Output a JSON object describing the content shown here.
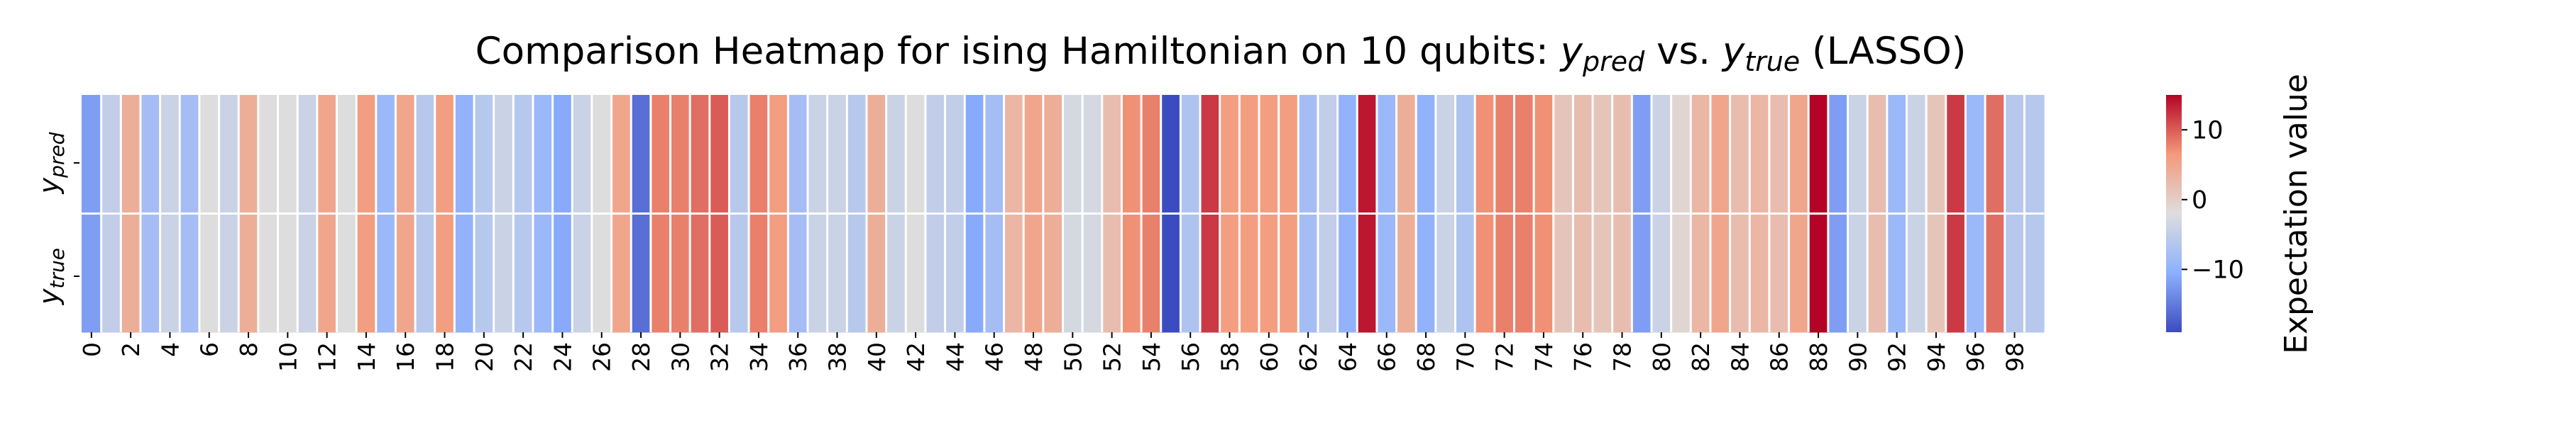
{
  "chart_data": {
    "type": "heatmap",
    "title": {
      "prefix": "Comparison Heatmap for ising Hamiltonian on 10 qubits: ",
      "pred_symbol": "y",
      "pred_sub": "pred",
      "middle": " vs. ",
      "true_symbol": "y",
      "true_sub": "true",
      "suffix": " (LASSO)"
    },
    "rows": [
      {
        "symbol": "y",
        "sub": "pred"
      },
      {
        "symbol": "y",
        "sub": "true"
      }
    ],
    "x_tick_labels": [
      "0",
      "2",
      "4",
      "6",
      "8",
      "10",
      "12",
      "14",
      "16",
      "18",
      "20",
      "22",
      "24",
      "26",
      "28",
      "30",
      "32",
      "34",
      "36",
      "38",
      "40",
      "42",
      "44",
      "46",
      "48",
      "50",
      "52",
      "54",
      "56",
      "58",
      "60",
      "62",
      "64",
      "66",
      "68",
      "70",
      "72",
      "74",
      "76",
      "78",
      "80",
      "82",
      "84",
      "86",
      "88",
      "90",
      "92",
      "94",
      "96",
      "98"
    ],
    "values": [
      -12,
      -5,
      4,
      -8,
      -4,
      -8,
      -2,
      -4,
      4,
      -2,
      -2,
      -4,
      5,
      -2,
      6,
      -9,
      5,
      -6,
      6,
      -10,
      -6,
      -4,
      -6,
      -9,
      -11,
      -4,
      -2,
      5,
      -16,
      8,
      8,
      9,
      10,
      -6,
      8,
      6,
      -8,
      -4,
      -4,
      -6,
      4,
      -4,
      -2,
      -5,
      -5,
      -11,
      -8,
      3,
      5,
      4,
      -3,
      -3,
      2,
      7,
      8,
      -19,
      -7,
      12,
      6,
      6,
      6,
      6,
      -8,
      -5,
      -10,
      14,
      -9,
      4,
      -10,
      -4,
      -7,
      7,
      8,
      8,
      7,
      1,
      2,
      1,
      2,
      -12,
      -4,
      -1,
      3,
      5,
      2,
      3,
      2,
      5,
      15,
      -12,
      -4,
      2,
      -9,
      -4,
      1,
      12,
      -9,
      9,
      -6,
      -6
    ],
    "colorbar": {
      "label": "Expectation value",
      "ticks": [
        10,
        0,
        -10
      ],
      "tick_labels": [
        "10",
        "0",
        "−10"
      ],
      "range": [
        -19,
        15
      ]
    },
    "colormap": "coolwarm"
  }
}
